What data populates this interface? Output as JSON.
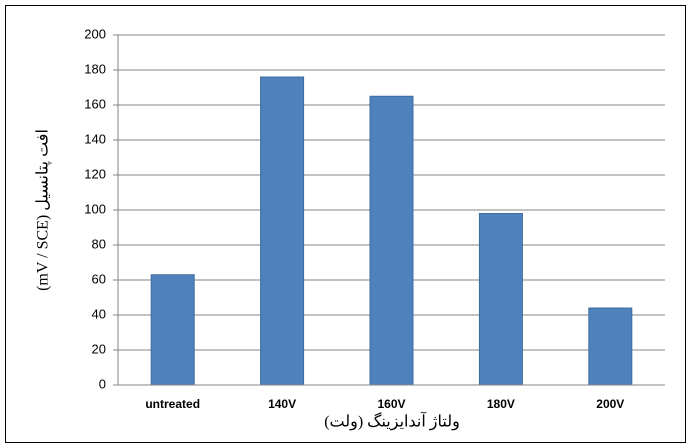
{
  "chart_data": {
    "type": "bar",
    "categories": [
      "untreated",
      "140V",
      "160V",
      "180V",
      "200V"
    ],
    "values": [
      63,
      176,
      165,
      98,
      44
    ],
    "color": "#4f81bd",
    "ylim": [
      0,
      200
    ],
    "yticks": [
      0,
      20,
      40,
      60,
      80,
      100,
      120,
      140,
      160,
      180,
      200
    ],
    "grid": true,
    "x_label": "ولتاژ آندایزینگ (ولت)",
    "y_label": "افت پتانسیل (mV / SCE)"
  }
}
